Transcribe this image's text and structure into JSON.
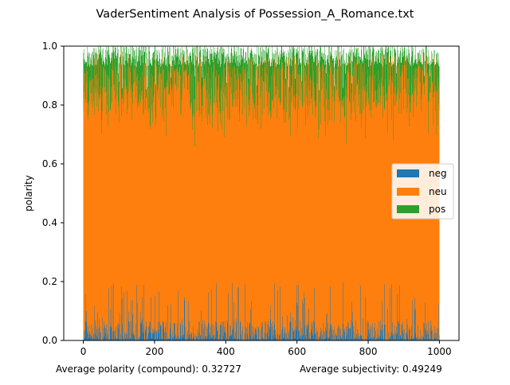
{
  "chart_data": {
    "type": "bar",
    "stacked": true,
    "title": "VaderSentiment Analysis of Possession_A_Romance.txt",
    "xlabel": "Average polarity (compound): 0.32727",
    "xlabel_right": "Average subjectivity: 0.49249",
    "ylabel": "polarity",
    "xlim": [
      -55,
      1055
    ],
    "ylim": [
      0,
      1
    ],
    "n_bars": 1000,
    "xticks": [
      "0",
      "200",
      "400",
      "600",
      "800",
      "1000"
    ],
    "yticks": [
      "0.0",
      "0.2",
      "0.4",
      "0.6",
      "0.8",
      "1.0"
    ],
    "legend_position": "center-right",
    "series": [
      {
        "name": "neg",
        "color": "#1f77b4",
        "typical_range": [
          0.0,
          0.18
        ]
      },
      {
        "name": "neu",
        "color": "#ff7f0e",
        "typical_range": [
          0.7,
          1.0
        ]
      },
      {
        "name": "pos",
        "color": "#2ca02c",
        "typical_range": [
          0.0,
          0.3
        ]
      }
    ]
  }
}
